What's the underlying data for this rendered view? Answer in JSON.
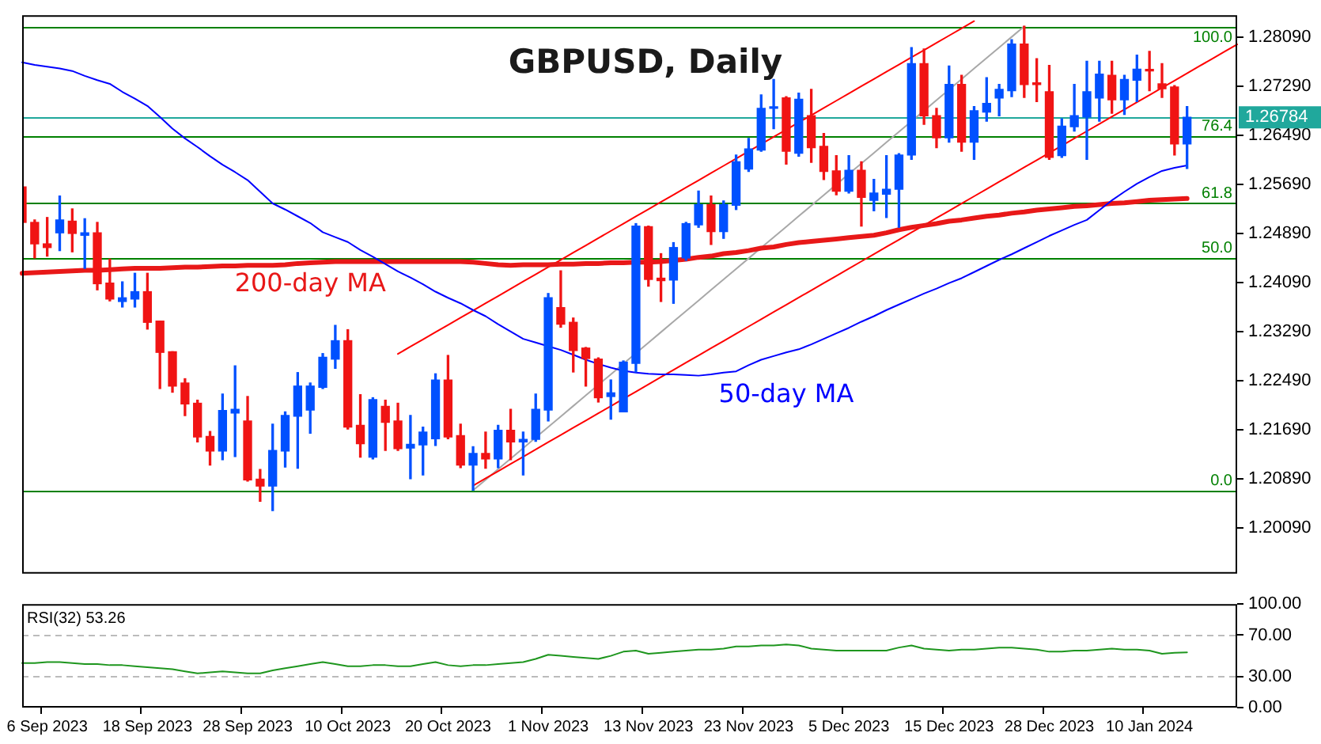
{
  "chart_data": [
    {
      "type": "candlestick",
      "title": "GBPUSD, Daily",
      "categories": [
        null,
        null,
        null,
        null,
        null,
        null,
        null,
        null,
        null,
        null,
        null,
        null,
        null,
        null,
        null,
        null,
        null,
        null,
        null,
        null,
        null,
        null,
        null,
        null,
        null,
        null,
        null,
        null,
        null,
        null,
        null,
        null,
        null,
        null,
        null,
        null,
        null,
        null,
        null,
        null,
        null,
        null,
        null,
        null,
        null,
        null,
        null,
        null,
        null,
        null,
        null,
        null,
        null,
        null,
        null,
        null,
        null,
        null,
        null,
        null,
        null,
        null,
        null,
        null,
        null,
        null,
        null,
        null,
        null,
        null,
        null,
        null,
        null,
        null,
        null,
        null,
        null,
        null,
        null,
        null,
        null,
        null,
        null,
        null,
        null,
        null,
        null,
        null,
        null,
        null,
        null,
        null,
        null,
        null,
        null,
        null,
        null,
        null
      ],
      "ohlc": [
        [
          1.2565,
          1.2565,
          1.2507,
          1.2507
        ],
        [
          1.2507,
          1.2511,
          1.2449,
          1.2472
        ],
        [
          1.2472,
          1.2515,
          1.2452,
          1.2466
        ],
        [
          1.249,
          1.255,
          1.2461,
          1.2511
        ],
        [
          1.2509,
          1.2529,
          1.2459,
          1.2489
        ],
        [
          1.2486,
          1.2513,
          1.2432,
          1.249
        ],
        [
          1.249,
          1.2507,
          1.2397,
          1.2407
        ],
        [
          1.2408,
          1.2447,
          1.2379,
          1.2382
        ],
        [
          1.2378,
          1.241,
          1.2369,
          1.2384
        ],
        [
          1.2382,
          1.2424,
          1.2369,
          1.2394
        ],
        [
          1.2394,
          1.2424,
          1.2333,
          1.2344
        ],
        [
          1.2346,
          1.2346,
          1.2236,
          1.2295
        ],
        [
          1.2296,
          1.2296,
          1.223,
          1.224
        ],
        [
          1.2245,
          1.2252,
          1.2192,
          1.2211
        ],
        [
          1.2212,
          1.2217,
          1.2149,
          1.2157
        ],
        [
          1.2158,
          1.2166,
          1.2111,
          1.2134
        ],
        [
          1.2134,
          1.2227,
          1.212,
          1.22
        ],
        [
          1.2196,
          1.2273,
          1.2125,
          1.2202
        ],
        [
          1.2183,
          1.2223,
          1.2085,
          1.2087
        ],
        [
          1.2088,
          1.2104,
          1.2052,
          1.2077
        ],
        [
          1.2077,
          1.2178,
          1.2037,
          1.2135
        ],
        [
          1.2134,
          1.2198,
          1.2108,
          1.2192
        ],
        [
          1.2191,
          1.2262,
          1.2106,
          1.224
        ],
        [
          1.2201,
          1.2245,
          1.2163,
          1.224
        ],
        [
          1.2238,
          1.2293,
          1.2236,
          1.2287
        ],
        [
          1.2284,
          1.2339,
          1.2269,
          1.2314
        ],
        [
          1.2314,
          1.2332,
          1.217,
          1.2173
        ],
        [
          1.2176,
          1.2226,
          1.2124,
          1.2146
        ],
        [
          1.2124,
          1.2221,
          1.2121,
          1.2218
        ],
        [
          1.2207,
          1.2217,
          1.2135,
          1.2181
        ],
        [
          1.2183,
          1.2212,
          1.2135,
          1.2138
        ],
        [
          1.2139,
          1.2192,
          1.2089,
          1.2145
        ],
        [
          1.2144,
          1.2173,
          1.2095,
          1.2165
        ],
        [
          1.2154,
          1.226,
          1.2143,
          1.225
        ],
        [
          1.225,
          1.229,
          1.2154,
          1.2157
        ],
        [
          1.2159,
          1.2178,
          1.2107,
          1.2111
        ],
        [
          1.2111,
          1.2141,
          1.207,
          1.213
        ],
        [
          1.213,
          1.2165,
          1.2106,
          1.2121
        ],
        [
          1.2121,
          1.2176,
          1.2107,
          1.2168
        ],
        [
          1.2168,
          1.2202,
          1.212,
          1.2149
        ],
        [
          1.2149,
          1.2165,
          1.2095,
          1.2153
        ],
        [
          1.2153,
          1.2227,
          1.215,
          1.2202
        ],
        [
          1.2201,
          1.2391,
          1.2183,
          1.2384
        ],
        [
          1.2368,
          1.2428,
          1.2336,
          1.2341
        ],
        [
          1.2344,
          1.2351,
          1.2263,
          1.2298
        ],
        [
          1.2302,
          1.2303,
          1.224,
          1.2285
        ],
        [
          1.2284,
          1.2286,
          1.2214,
          1.2221
        ],
        [
          1.2223,
          1.225,
          1.2186,
          1.2229
        ],
        [
          1.2198,
          1.2281,
          1.2198,
          1.2279
        ],
        [
          1.2277,
          1.2505,
          1.2263,
          1.2501
        ],
        [
          1.25,
          1.2501,
          1.2403,
          1.2414
        ],
        [
          1.2416,
          1.2456,
          1.2378,
          1.2412
        ],
        [
          1.2413,
          1.2474,
          1.2375,
          1.2466
        ],
        [
          1.2449,
          1.2507,
          1.2445,
          1.2505
        ],
        [
          1.2503,
          1.2558,
          1.2499,
          1.2536
        ],
        [
          1.2536,
          1.255,
          1.2471,
          1.2492
        ],
        [
          1.2492,
          1.2542,
          1.2481,
          1.2536
        ],
        [
          1.2535,
          1.2617,
          1.2528,
          1.2606
        ],
        [
          1.2594,
          1.2644,
          1.259,
          1.2627
        ],
        [
          1.2625,
          1.2715,
          1.2623,
          1.2693
        ],
        [
          1.2693,
          1.274,
          1.266,
          1.2694
        ],
        [
          1.271,
          1.2712,
          1.2602,
          1.2623
        ],
        [
          1.262,
          1.2718,
          1.2615,
          1.2708
        ],
        [
          1.2681,
          1.2724,
          1.2605,
          1.2629
        ],
        [
          1.2631,
          1.2652,
          1.2577,
          1.259
        ],
        [
          1.2591,
          1.2616,
          1.2552,
          1.2558
        ],
        [
          1.2558,
          1.2616,
          1.2555,
          1.2592
        ],
        [
          1.2592,
          1.2606,
          1.2501,
          1.2548
        ],
        [
          1.2543,
          1.2577,
          1.2526,
          1.2555
        ],
        [
          1.2553,
          1.2616,
          1.2515,
          1.2561
        ],
        [
          1.2561,
          1.2619,
          1.2499,
          1.2617
        ],
        [
          1.2617,
          1.2792,
          1.261,
          1.2766
        ],
        [
          1.2766,
          1.279,
          1.2667,
          1.2681
        ],
        [
          1.2681,
          1.2693,
          1.2629,
          1.2645
        ],
        [
          1.2645,
          1.2762,
          1.2638,
          1.2732
        ],
        [
          1.2732,
          1.2747,
          1.2623,
          1.2638
        ],
        [
          1.2638,
          1.2696,
          1.261,
          1.2689
        ],
        [
          1.2687,
          1.2743,
          1.2672,
          1.2701
        ],
        [
          1.271,
          1.2732,
          1.2681,
          1.2724
        ],
        [
          1.2722,
          1.2805,
          1.2712,
          1.2798
        ],
        [
          1.2798,
          1.2827,
          1.2711,
          1.2732
        ],
        [
          1.2733,
          1.2774,
          1.2704,
          1.2732
        ],
        [
          1.272,
          1.2763,
          1.261,
          1.2613
        ],
        [
          1.2616,
          1.2676,
          1.2613,
          1.2664
        ],
        [
          1.2663,
          1.2732,
          1.2656,
          1.2681
        ],
        [
          1.2679,
          1.277,
          1.261,
          1.272
        ],
        [
          1.271,
          1.277,
          1.2672,
          1.2749
        ],
        [
          1.2747,
          1.277,
          1.2685,
          1.2707
        ],
        [
          1.2707,
          1.2747,
          1.2683,
          1.274
        ],
        [
          1.2739,
          1.278,
          1.2704,
          1.2757
        ],
        [
          1.2755,
          1.2786,
          1.2722,
          1.2754
        ],
        [
          1.2733,
          1.2766,
          1.2711,
          1.2725
        ],
        [
          1.2728,
          1.273,
          1.2617,
          1.2635
        ],
        [
          1.2635,
          1.2696,
          1.2595,
          1.26784
        ],
        null,
        null,
        null,
        null
      ],
      "colors": [
        "#f01414",
        "#f01414",
        "#f01414",
        "#0050ff",
        "#f01414",
        "#0050ff",
        "#f01414",
        "#f01414",
        "#0050ff",
        "#0050ff",
        "#f01414",
        "#f01414",
        "#f01414",
        "#f01414",
        "#f01414",
        "#f01414",
        "#0050ff",
        "#0050ff",
        "#f01414",
        "#f01414",
        "#0050ff",
        "#0050ff",
        "#0050ff",
        "#0050ff",
        "#0050ff",
        "#0050ff",
        "#f01414",
        "#f01414",
        "#0050ff",
        "#f01414",
        "#f01414",
        "#0050ff",
        "#0050ff",
        "#0050ff",
        "#f01414",
        "#f01414",
        "#0050ff",
        "#f01414",
        "#0050ff",
        "#f01414",
        "#0050ff",
        "#0050ff",
        "#0050ff",
        "#f01414",
        "#f01414",
        "#f01414",
        "#f01414",
        "#0050ff",
        "#0050ff",
        "#0050ff",
        "#f01414",
        "#f01414",
        "#0050ff",
        "#0050ff",
        "#0050ff",
        "#f01414",
        "#0050ff",
        "#0050ff",
        "#0050ff",
        "#0050ff",
        "#0050ff",
        "#f01414",
        "#0050ff",
        "#f01414",
        "#f01414",
        "#f01414",
        "#0050ff",
        "#f01414",
        "#0050ff",
        "#0050ff",
        "#0050ff",
        "#0050ff",
        "#f01414",
        "#f01414",
        "#0050ff",
        "#f01414",
        "#0050ff",
        "#0050ff",
        "#0050ff",
        "#0050ff",
        "#f01414",
        "#f01414",
        "#f01414",
        "#0050ff",
        "#0050ff",
        "#0050ff",
        "#0050ff",
        "#f01414",
        "#0050ff",
        "#0050ff",
        "#f01414",
        "#f01414",
        "#f01414",
        "#0050ff",
        null,
        null,
        null,
        null
      ],
      "series": [
        {
          "name": "50-day MA",
          "type": "line",
          "color": "#0000ff",
          "values": [
            1.2768,
            1.2764,
            1.2761,
            1.2758,
            1.2754,
            1.2746,
            1.2739,
            1.2733,
            1.272,
            1.2709,
            1.2697,
            1.2679,
            1.266,
            1.2644,
            1.263,
            1.2615,
            1.2601,
            1.2589,
            1.2576,
            1.2557,
            1.2538,
            1.2528,
            1.2517,
            1.2506,
            1.2491,
            1.2483,
            1.2475,
            1.2462,
            1.2451,
            1.2439,
            1.2427,
            1.2417,
            1.2406,
            1.2394,
            1.2384,
            1.2375,
            1.2364,
            1.2354,
            1.2341,
            1.2329,
            1.2317,
            1.2311,
            1.2305,
            1.2299,
            1.2291,
            1.2283,
            1.2276,
            1.227,
            1.2265,
            1.2262,
            1.226,
            1.2259,
            1.2259,
            1.2258,
            1.2257,
            1.2259,
            1.2262,
            1.2264,
            1.2274,
            1.2283,
            1.2289,
            1.2295,
            1.23,
            1.2308,
            1.2317,
            1.2326,
            1.2335,
            1.2345,
            1.2354,
            1.2364,
            1.2373,
            1.2382,
            1.2391,
            1.2399,
            1.2408,
            1.2416,
            1.2426,
            1.2436,
            1.2446,
            1.2455,
            1.2465,
            1.2475,
            1.2485,
            1.2494,
            1.2503,
            1.2511,
            1.2527,
            1.2543,
            1.2557,
            1.257,
            1.2581,
            1.2591,
            1.2596,
            1.26,
            null,
            null,
            null,
            null
          ]
        },
        {
          "name": "200-day MA",
          "type": "line",
          "color": "#e81818",
          "values": [
            1.2424,
            1.2425,
            1.2426,
            1.2427,
            1.2428,
            1.2429,
            1.2429,
            1.243,
            1.2431,
            1.2432,
            1.2432,
            1.2432,
            1.2433,
            1.2434,
            1.2434,
            1.2435,
            1.2436,
            1.2436,
            1.2437,
            1.2437,
            1.2437,
            1.2438,
            1.244,
            1.2441,
            1.2442,
            1.2443,
            1.2443,
            1.2443,
            1.2443,
            1.2443,
            1.2443,
            1.2443,
            1.2443,
            1.2443,
            1.2443,
            1.2443,
            1.2442,
            1.244,
            1.2438,
            1.2437,
            1.2438,
            1.2438,
            1.2438,
            1.2439,
            1.2439,
            1.244,
            1.244,
            1.2441,
            1.2441,
            1.2442,
            1.2442,
            1.2443,
            1.2445,
            1.2447,
            1.245,
            1.2452,
            1.2456,
            1.2458,
            1.2461,
            1.2465,
            1.2467,
            1.2471,
            1.2474,
            1.2476,
            1.2478,
            1.248,
            1.2482,
            1.2484,
            1.2486,
            1.249,
            1.2495,
            1.2499,
            1.2502,
            1.2505,
            1.2509,
            1.2511,
            1.2514,
            1.2517,
            1.2519,
            1.2522,
            1.2524,
            1.2527,
            1.2529,
            1.2531,
            1.2533,
            1.2534,
            1.2536,
            1.2538,
            1.2539,
            1.2541,
            1.2543,
            1.2544,
            1.2545,
            1.2546,
            null,
            null,
            null,
            null
          ]
        },
        {
          "type": "line",
          "color": "#ff0000",
          "values": [
            null,
            null,
            null,
            null,
            null,
            null,
            null,
            null,
            null,
            null,
            null,
            null,
            null,
            null,
            null,
            null,
            null,
            null,
            null,
            null,
            null,
            null,
            null,
            null,
            null,
            null,
            null,
            null,
            null,
            null,
            1.22925,
            1.23043,
            1.23161,
            1.23279,
            1.23397,
            1.23515,
            1.23633,
            1.23751,
            1.23869,
            1.23987,
            1.24105,
            1.24223,
            1.24341,
            1.24459,
            1.24577,
            1.24695,
            1.24813,
            1.24931,
            1.25049,
            1.25167,
            1.25285,
            1.25403,
            1.25521,
            1.25639,
            1.25757,
            1.25875,
            1.25993,
            1.26111,
            1.26229,
            1.26347,
            1.26465,
            1.26583,
            1.26701,
            1.26819,
            1.26937,
            1.27055,
            1.27173,
            1.27291,
            1.27409,
            1.27527,
            1.27645,
            1.27763,
            1.27881,
            1.27999,
            1.28117,
            1.28235,
            1.28353,
            null,
            null,
            null,
            null,
            null,
            null,
            null,
            null,
            null,
            null,
            null,
            null,
            null,
            null,
            null,
            null,
            null,
            null,
            null,
            null,
            null
          ]
        },
        {
          "type": "line",
          "color": "#ff0000",
          "values": [
            null,
            null,
            null,
            null,
            null,
            null,
            null,
            null,
            null,
            null,
            null,
            null,
            null,
            null,
            null,
            null,
            null,
            null,
            null,
            null,
            null,
            null,
            null,
            null,
            null,
            null,
            null,
            null,
            null,
            null,
            null,
            null,
            null,
            null,
            null,
            null,
            1.20776,
            1.20894,
            1.21012,
            1.2113,
            1.21248,
            1.21366,
            1.21484,
            1.21602,
            1.2172,
            1.21838,
            1.21956,
            1.22074,
            1.22192,
            1.2231,
            1.22428,
            1.22546,
            1.22664,
            1.22782,
            1.229,
            1.23018,
            1.23136,
            1.23254,
            1.23372,
            1.2349,
            1.23608,
            1.23726,
            1.23844,
            1.23962,
            1.2408,
            1.24198,
            1.24316,
            1.24434,
            1.24552,
            1.2467,
            1.24788,
            1.24906,
            1.25024,
            1.25142,
            1.2526,
            1.25378,
            1.25496,
            1.25614,
            1.25732,
            1.2585,
            1.25968,
            1.26086,
            1.26204,
            1.26322,
            1.2644,
            1.26558,
            1.26676,
            1.26794,
            1.26912,
            1.2703,
            1.27148,
            1.27266,
            1.27384,
            1.27502,
            1.2762,
            1.27738,
            1.27856,
            1.27974
          ]
        },
        {
          "type": "line",
          "color": "#a8a8a8",
          "values": [
            null,
            null,
            null,
            null,
            null,
            null,
            null,
            null,
            null,
            null,
            null,
            null,
            null,
            null,
            null,
            null,
            null,
            null,
            null,
            null,
            null,
            null,
            null,
            null,
            null,
            null,
            null,
            null,
            null,
            null,
            null,
            null,
            null,
            null,
            null,
            null,
            1.207,
            1.20872,
            1.21044,
            1.21216,
            1.21388,
            1.2156,
            1.21732,
            1.21904,
            1.22076,
            1.22248,
            1.2242,
            1.22592,
            1.22764,
            1.22936,
            1.23108,
            1.2328,
            1.23452,
            1.23624,
            1.23796,
            1.23968,
            1.2414,
            1.24312,
            1.24484,
            1.24656,
            1.24828,
            1.25,
            1.25172,
            1.25344,
            1.25516,
            1.25688,
            1.2586,
            1.26032,
            1.26204,
            1.26376,
            1.26548,
            1.2672,
            1.26892,
            1.27064,
            1.27236,
            1.27408,
            1.2758,
            1.27752,
            1.27924,
            1.28096,
            1.28268,
            null,
            null,
            null,
            null,
            null,
            null,
            null,
            null,
            null,
            null,
            null,
            null,
            null,
            null,
            null,
            null,
            null
          ]
        }
      ],
      "ylim": [
        1.1934,
        1.2845
      ],
      "yticks": [
        {
          "value": 1.2809,
          "label": "1.28090"
        },
        {
          "value": 1.2729,
          "label": "1.27290"
        },
        {
          "value": 1.2649,
          "label": "1.26490"
        },
        {
          "value": 1.2569,
          "label": "1.25690"
        },
        {
          "value": 1.2489,
          "label": "1.24890"
        },
        {
          "value": 1.2409,
          "label": "1.24090"
        },
        {
          "value": 1.2329,
          "label": "1.23290"
        },
        {
          "value": 1.2249,
          "label": "1.22490"
        },
        {
          "value": 1.2169,
          "label": "1.21690"
        },
        {
          "value": 1.2089,
          "label": "1.20890"
        },
        {
          "value": 1.2009,
          "label": "1.20090"
        }
      ],
      "ref_lines": [
        {
          "axis": "y",
          "value": 1.2827,
          "color": "#008000"
        },
        {
          "axis": "y",
          "value": 1.2648,
          "color": "#008000"
        },
        {
          "axis": "y",
          "value": 1.2538,
          "color": "#008000"
        },
        {
          "axis": "y",
          "value": 1.2449,
          "color": "#008000"
        },
        {
          "axis": "y",
          "value": 1.207,
          "color": "#008000"
        },
        {
          "axis": "y",
          "value": 1.26784,
          "label": "1.26784",
          "color": "#20a89c"
        }
      ],
      "annotations": [
        {
          "text": "100.0",
          "y": 1.2827
        },
        {
          "text": "76.4",
          "y": 1.2648
        },
        {
          "text": "61.8",
          "y": 1.2538
        },
        {
          "text": "50.0",
          "y": 1.2449
        },
        {
          "text": "0.0",
          "y": 1.207
        }
      ],
      "tick_labels": "y"
    },
    {
      "type": "line",
      "title": "RSI(32) 53.26",
      "categories": [
        null,
        null,
        "6 Sep 2023",
        null,
        null,
        null,
        null,
        null,
        null,
        null,
        "18 Sep 2023",
        null,
        null,
        null,
        null,
        null,
        null,
        null,
        "28 Sep 2023",
        null,
        null,
        null,
        null,
        null,
        null,
        null,
        "10 Oct 2023",
        null,
        null,
        null,
        null,
        null,
        null,
        null,
        "20 Oct 2023",
        null,
        null,
        null,
        null,
        null,
        null,
        null,
        "1 Nov 2023",
        null,
        null,
        null,
        null,
        null,
        null,
        null,
        "13 Nov 2023",
        null,
        null,
        null,
        null,
        null,
        null,
        null,
        "23 Nov 2023",
        null,
        null,
        null,
        null,
        null,
        null,
        null,
        "5 Dec 2023",
        null,
        null,
        null,
        null,
        null,
        null,
        null,
        "15 Dec 2023",
        null,
        null,
        null,
        null,
        null,
        null,
        null,
        "28 Dec 2023",
        null,
        null,
        null,
        null,
        null,
        null,
        null,
        "10 Jan 2024",
        null,
        null,
        null,
        null,
        null,
        null,
        null
      ],
      "series": [
        {
          "color": "#1e961e",
          "values": [
            43,
            43,
            44,
            44,
            43,
            42,
            42,
            41,
            41,
            40,
            39,
            38,
            37,
            35,
            33,
            34,
            35,
            34,
            33,
            33,
            36,
            38,
            40,
            42,
            44,
            42,
            40,
            40,
            41,
            41,
            40,
            40,
            42,
            44,
            41,
            40,
            41,
            41,
            42,
            43,
            44,
            47,
            51,
            50,
            49,
            48,
            47,
            50,
            54,
            55,
            52,
            53,
            54,
            55,
            56,
            56,
            57,
            59,
            59,
            60,
            60,
            61,
            60,
            57,
            56,
            55,
            55,
            55,
            55,
            55,
            58,
            60,
            57,
            56,
            55,
            56,
            56,
            57,
            58,
            58,
            57,
            56,
            54,
            54,
            55,
            55,
            56,
            57,
            56,
            56,
            55,
            52,
            53,
            53.26,
            null,
            null,
            null,
            null
          ]
        }
      ],
      "ylim": [
        0,
        100
      ],
      "yticks": [
        {
          "value": 100,
          "label": "100.00"
        },
        {
          "value": 70,
          "label": "70.00"
        },
        {
          "value": 30,
          "label": "30.00"
        },
        {
          "value": 0,
          "label": "0.00"
        }
      ],
      "ref_lines": [
        {
          "axis": "y",
          "value": 70,
          "color": "#bbbbbb",
          "line_style": "dashed"
        },
        {
          "axis": "y",
          "value": 30,
          "color": "#bbbbbb",
          "line_style": "dashed"
        }
      ]
    }
  ]
}
